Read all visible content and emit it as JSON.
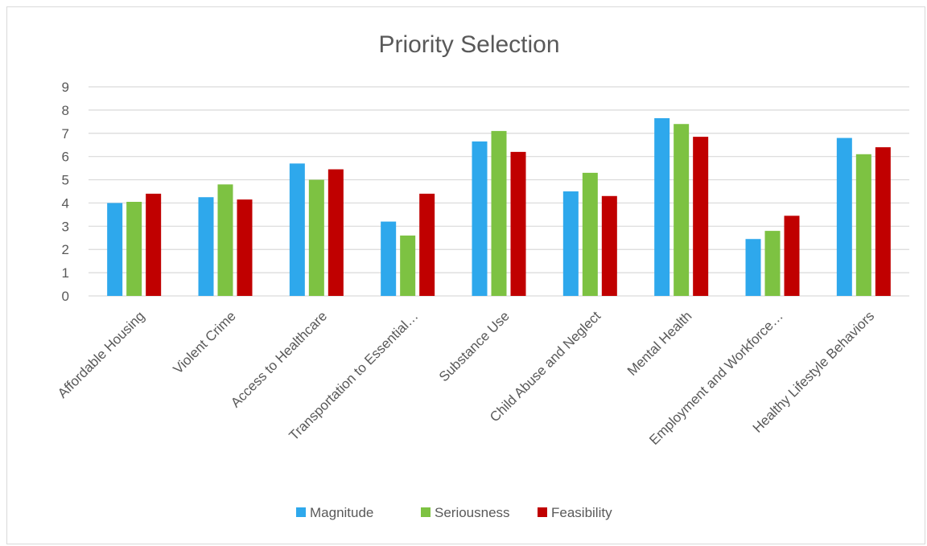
{
  "chart_data": {
    "type": "bar",
    "title": "Priority Selection",
    "categories": [
      "Affordable Housing",
      "Violent Crime",
      "Access to Healthcare",
      "Transportation to Essential…",
      "Substance Use",
      "Child Abuse and Neglect",
      "Mental Health",
      "Employment and Workforce…",
      "Healthy Lifestyle Behaviors"
    ],
    "series": [
      {
        "name": "Magnitude",
        "color": "#2ea8ec",
        "values": [
          4.0,
          4.25,
          5.7,
          3.2,
          6.65,
          4.5,
          7.65,
          2.45,
          6.8
        ]
      },
      {
        "name": "Seriousness",
        "color": "#7dc242",
        "values": [
          4.05,
          4.8,
          5.0,
          2.6,
          7.1,
          5.3,
          7.4,
          2.8,
          6.1
        ]
      },
      {
        "name": "Feasibility",
        "color": "#c00000",
        "values": [
          4.4,
          4.15,
          5.45,
          4.4,
          6.2,
          4.3,
          6.85,
          3.45,
          6.4
        ]
      }
    ],
    "ylim": [
      0,
      9
    ],
    "yticks": [
      0,
      1,
      2,
      3,
      4,
      5,
      6,
      7,
      8,
      9
    ],
    "grid": true,
    "legend_position": "bottom"
  }
}
